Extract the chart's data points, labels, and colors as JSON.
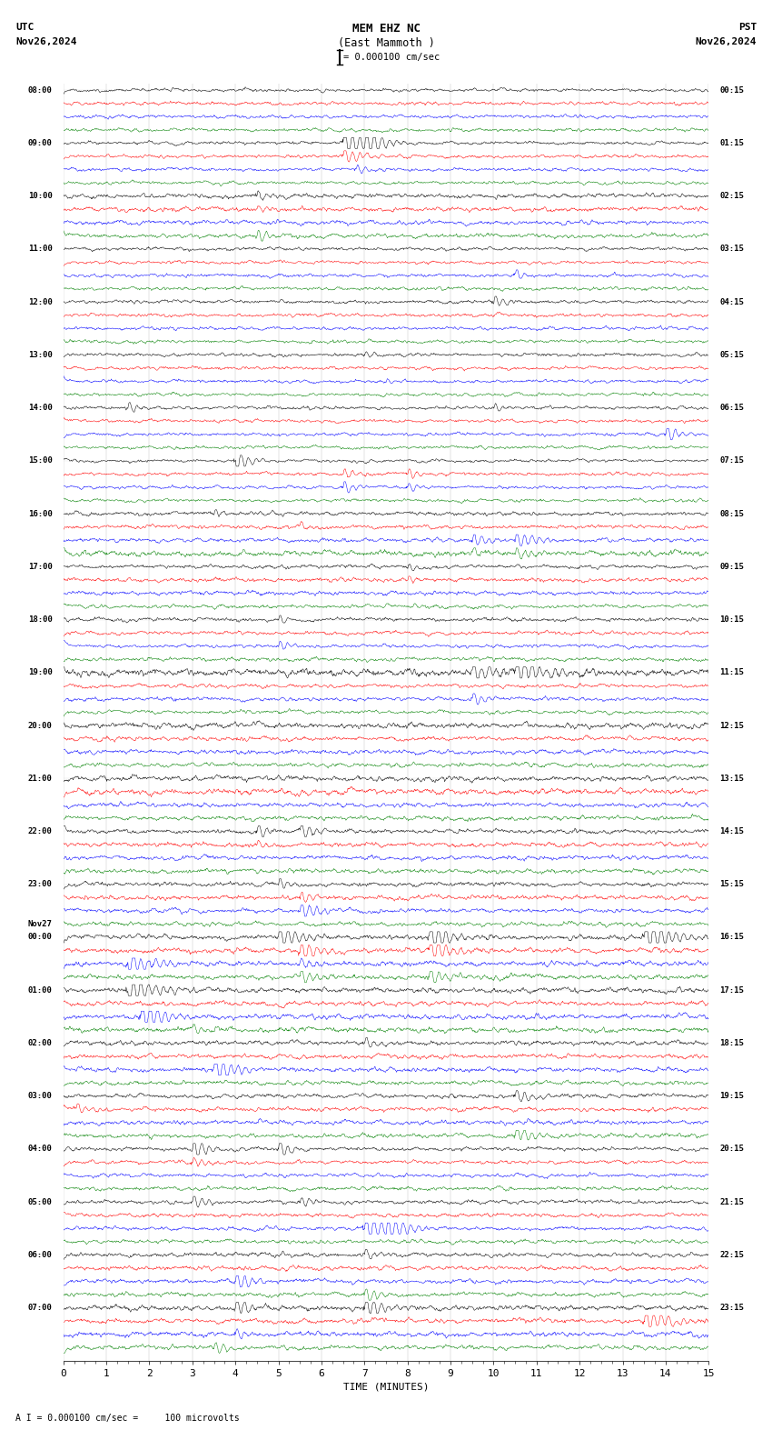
{
  "title_line1": "MEM EHZ NC",
  "title_line2": "(East Mammoth )",
  "scale_label": "= 0.000100 cm/sec",
  "utc_label": "UTC",
  "pst_label": "PST",
  "date_left": "Nov26,2024",
  "date_right": "Nov26,2024",
  "xlabel": "TIME (MINUTES)",
  "footer": "A I = 0.000100 cm/sec =     100 microvolts",
  "n_rows": 96,
  "colors": [
    "black",
    "red",
    "blue",
    "green"
  ],
  "bg_color": "#ffffff",
  "figsize": [
    8.5,
    15.84
  ],
  "dpi": 100,
  "label_data_utc": [
    [
      0,
      "08:00"
    ],
    [
      4,
      "09:00"
    ],
    [
      8,
      "10:00"
    ],
    [
      12,
      "11:00"
    ],
    [
      16,
      "12:00"
    ],
    [
      20,
      "13:00"
    ],
    [
      24,
      "14:00"
    ],
    [
      28,
      "15:00"
    ],
    [
      32,
      "16:00"
    ],
    [
      36,
      "17:00"
    ],
    [
      40,
      "18:00"
    ],
    [
      44,
      "19:00"
    ],
    [
      48,
      "20:00"
    ],
    [
      52,
      "21:00"
    ],
    [
      56,
      "22:00"
    ],
    [
      60,
      "23:00"
    ],
    [
      63,
      "Nov27"
    ],
    [
      64,
      "00:00"
    ],
    [
      68,
      "01:00"
    ],
    [
      72,
      "02:00"
    ],
    [
      76,
      "03:00"
    ],
    [
      80,
      "04:00"
    ],
    [
      84,
      "05:00"
    ],
    [
      88,
      "06:00"
    ],
    [
      92,
      "07:00"
    ]
  ],
  "label_data_pst": [
    [
      0,
      "00:15"
    ],
    [
      4,
      "01:15"
    ],
    [
      8,
      "02:15"
    ],
    [
      12,
      "03:15"
    ],
    [
      16,
      "04:15"
    ],
    [
      20,
      "05:15"
    ],
    [
      24,
      "06:15"
    ],
    [
      28,
      "07:15"
    ],
    [
      32,
      "08:15"
    ],
    [
      36,
      "09:15"
    ],
    [
      40,
      "10:15"
    ],
    [
      44,
      "11:15"
    ],
    [
      48,
      "12:15"
    ],
    [
      52,
      "13:15"
    ],
    [
      56,
      "14:15"
    ],
    [
      60,
      "15:15"
    ],
    [
      64,
      "16:15"
    ],
    [
      68,
      "17:15"
    ],
    [
      72,
      "18:15"
    ],
    [
      76,
      "19:15"
    ],
    [
      80,
      "20:15"
    ],
    [
      84,
      "21:15"
    ],
    [
      88,
      "22:15"
    ],
    [
      92,
      "23:15"
    ]
  ],
  "noise_levels": [
    0.06,
    0.06,
    0.06,
    0.06,
    0.06,
    0.06,
    0.06,
    0.06,
    0.08,
    0.08,
    0.08,
    0.08,
    0.06,
    0.06,
    0.06,
    0.06,
    0.06,
    0.06,
    0.06,
    0.06,
    0.06,
    0.06,
    0.06,
    0.06,
    0.06,
    0.06,
    0.06,
    0.06,
    0.06,
    0.06,
    0.06,
    0.06,
    0.07,
    0.07,
    0.07,
    0.07,
    0.07,
    0.07,
    0.07,
    0.07,
    0.07,
    0.07,
    0.07,
    0.07,
    0.07,
    0.07,
    0.07,
    0.07,
    0.08,
    0.08,
    0.08,
    0.08,
    0.08,
    0.08,
    0.08,
    0.08,
    0.08,
    0.08,
    0.08,
    0.08,
    0.08,
    0.08,
    0.08,
    0.08,
    0.09,
    0.09,
    0.09,
    0.09,
    0.09,
    0.09,
    0.09,
    0.09,
    0.08,
    0.08,
    0.08,
    0.08,
    0.08,
    0.08,
    0.08,
    0.08,
    0.07,
    0.07,
    0.07,
    0.07,
    0.07,
    0.07,
    0.07,
    0.07,
    0.08,
    0.08,
    0.08,
    0.08,
    0.09,
    0.09,
    0.09,
    0.09
  ]
}
